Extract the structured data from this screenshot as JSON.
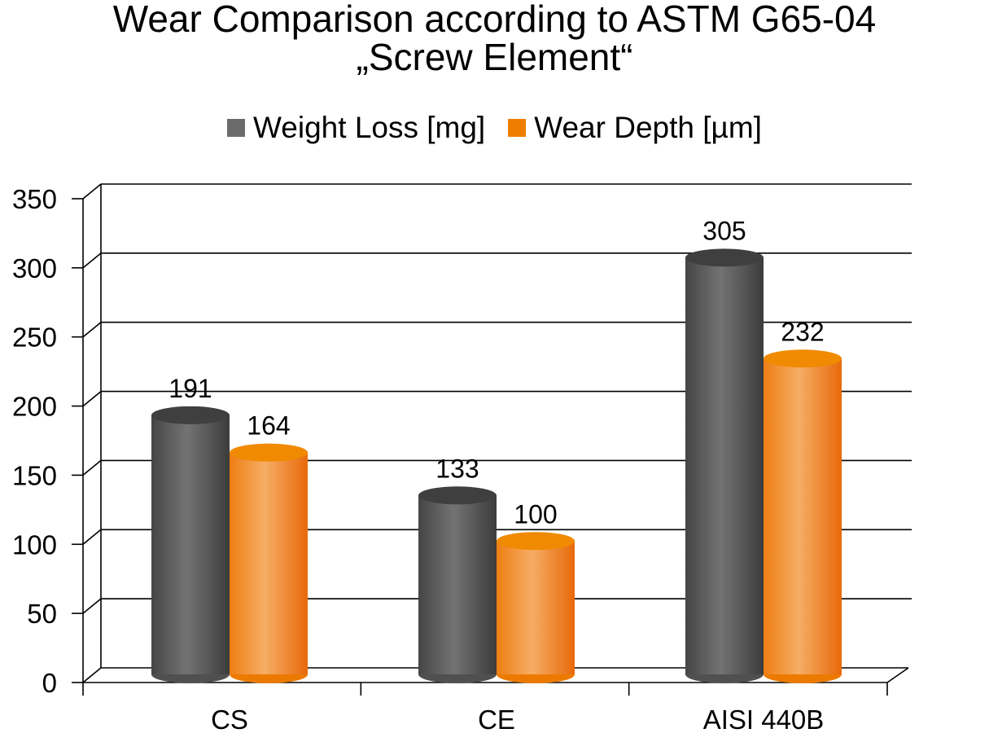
{
  "chart_data": {
    "type": "bar",
    "title_lines": [
      "Wear Comparison according to ASTM G65-04",
      "„Screw Element“"
    ],
    "categories": [
      "CS",
      "CE",
      "AISI 440B"
    ],
    "series": [
      {
        "name": "Weight Loss [mg]",
        "values": [
          191,
          133,
          305
        ],
        "color": "#595959"
      },
      {
        "name": "Wear Depth [µm]",
        "values": [
          164,
          100,
          232
        ],
        "color": "#ee7d00"
      }
    ],
    "ylim": [
      0,
      350
    ],
    "yticks": [
      "0",
      "50",
      "100",
      "150",
      "200",
      "250",
      "300",
      "350"
    ],
    "grid": true,
    "legend": "top"
  }
}
